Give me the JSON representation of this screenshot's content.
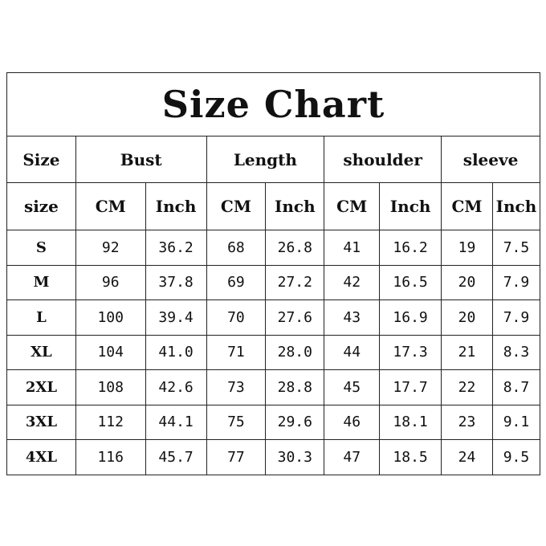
{
  "title": "Size Chart",
  "header_groups": [
    "Size",
    "Bust",
    "Length",
    "shoulder",
    "sleeve"
  ],
  "sub_headers": [
    "size",
    "CM",
    "Inch",
    "CM",
    "Inch",
    "CM",
    "Inch",
    "CM",
    "Inch"
  ],
  "rows": [
    [
      "S",
      "92",
      "36.2",
      "68",
      "26.8",
      "41",
      "16.2",
      "19",
      "7.5"
    ],
    [
      "M",
      "96",
      "37.8",
      "69",
      "27.2",
      "42",
      "16.5",
      "20",
      "7.9"
    ],
    [
      "L",
      "100",
      "39.4",
      "70",
      "27.6",
      "43",
      "16.9",
      "20",
      "7.9"
    ],
    [
      "XL",
      "104",
      "41.0",
      "71",
      "28.0",
      "44",
      "17.3",
      "21",
      "8.3"
    ],
    [
      "2XL",
      "108",
      "42.6",
      "73",
      "28.8",
      "45",
      "17.7",
      "22",
      "8.7"
    ],
    [
      "3XL",
      "112",
      "44.1",
      "75",
      "29.6",
      "46",
      "18.1",
      "23",
      "9.1"
    ],
    [
      "4XL",
      "116",
      "45.7",
      "77",
      "30.3",
      "47",
      "18.5",
      "24",
      "9.5"
    ]
  ]
}
